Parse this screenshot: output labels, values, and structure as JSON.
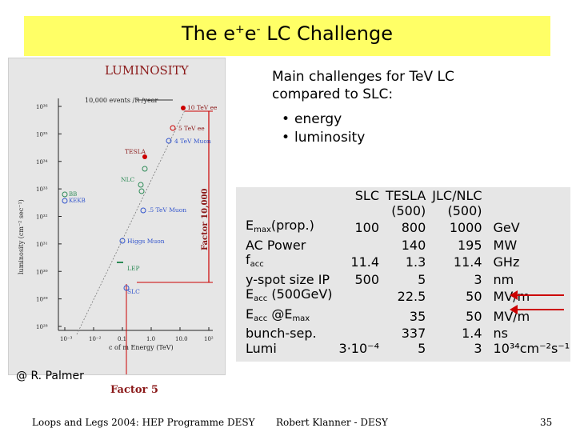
{
  "slide": {
    "title_main": "The e",
    "title_plus": "+",
    "title_e": "e",
    "title_minus": "-",
    "title_rest": " LC Challenge",
    "intro_line1": "Main challenges for TeV LC",
    "intro_line2": "compared to SLC:",
    "bullets": [
      "energy",
      "luminosity"
    ],
    "credit": "@ R. Palmer",
    "footer_left": "Loops and Legs 2004: HEP Programme DESY",
    "footer_mid": "Robert Klanner - DESY",
    "page_number": "35"
  },
  "plot": {
    "title": "LUMINOSITY",
    "events_label": "10,000 events /R /year",
    "ylabel": "luminosity (cm⁻² sec⁻¹)",
    "xlabel": "c of m Energy (TeV)",
    "factor_right": "Factor 10,000",
    "factor_bottom": "Factor 5",
    "y_ticks": [
      "10³⁶",
      "10³⁵",
      "10³⁴",
      "10³³",
      "10³²",
      "10³¹",
      "10³⁰",
      "10²⁹",
      "10²⁸"
    ],
    "x_ticks": [
      "10⁻³",
      "10⁻²",
      "0.1",
      "1.0",
      "10.0",
      "10²"
    ],
    "points": {
      "tev10": "10 TeV ee",
      "tev5": "5 TeV ee",
      "muon4": "4 TeV Muon",
      "tesla": "TESLA",
      "nlc": "NLC",
      "bb": "BB",
      "kekb": "KEKB",
      "muon05": ".5 TeV Muon",
      "higgs": "Higgs Muon",
      "lep": "LEP",
      "slc": "SLC"
    },
    "colors": {
      "accent_red": "#cc0000",
      "dark_red": "#8b1a1a",
      "green": "#2e8b57",
      "blue": "#3355cc"
    }
  },
  "table": {
    "header": [
      "",
      "SLC",
      "TESLA",
      "JLC/NLC",
      ""
    ],
    "subheader": [
      "",
      "",
      "(500)",
      "(500)",
      ""
    ],
    "rows": [
      {
        "label_main": "E",
        "label_sub": "max",
        "label_rest": "(prop.)",
        "slc": "100",
        "tesla": "800",
        "jlc": "1000",
        "unit": "GeV"
      },
      {
        "label_main": "AC Power",
        "label_sub": "",
        "label_rest": "",
        "slc": "",
        "tesla": "140",
        "jlc": "195",
        "unit": "MW"
      },
      {
        "label_main": "f",
        "label_sub": "acc",
        "label_rest": "",
        "slc": "11.4",
        "tesla": "1.3",
        "jlc": "11.4",
        "unit": "GHz"
      },
      {
        "label_main": "y-spot size IP",
        "label_sub": "",
        "label_rest": "",
        "slc": "500",
        "tesla": "5",
        "jlc": "3",
        "unit": "nm"
      },
      {
        "label_main": "E",
        "label_sub": "acc",
        "label_rest": " (500GeV)",
        "slc": "",
        "tesla": "22.5",
        "jlc": "50",
        "unit": "MV/m"
      },
      {
        "label_main": "E",
        "label_sub": "acc",
        "label_rest": " @E",
        "label_sub2": "max",
        "slc": "",
        "tesla": "35",
        "jlc": "50",
        "unit": "MV/m"
      },
      {
        "label_main": "bunch-sep.",
        "label_sub": "",
        "label_rest": "",
        "slc": "",
        "tesla": "337",
        "jlc": "1.4",
        "unit": "ns"
      },
      {
        "label_main": "Lumi",
        "label_sub": "",
        "label_rest": "",
        "slc": "3·10⁻⁴",
        "tesla": "5",
        "jlc": "3",
        "unit": "10³⁴cm⁻²s⁻¹"
      }
    ]
  }
}
